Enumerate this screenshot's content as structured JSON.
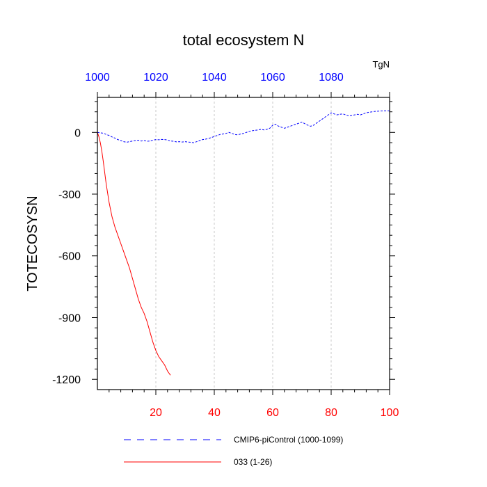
{
  "chart_data": {
    "type": "line",
    "title": "total ecosystem N",
    "ylabel": "TOTECOSYSN",
    "units": "TgN",
    "xlim": [
      0,
      100
    ],
    "ylim": [
      -1250,
      170
    ],
    "bottom_axis": {
      "color": "#ff0000",
      "ticks": [
        20,
        40,
        60,
        80,
        100
      ],
      "tick_labels": [
        "20",
        "40",
        "60",
        "80",
        "100"
      ]
    },
    "top_axis": {
      "color": "#0000ff",
      "offset": 1000,
      "ticks": [
        0,
        20,
        40,
        60,
        80
      ],
      "tick_labels": [
        "1000",
        "1020",
        "1040",
        "1060",
        "1080"
      ]
    },
    "y_ticks": [
      0,
      -300,
      -600,
      -900,
      -1200
    ],
    "y_tick_labels": [
      "0",
      "-300",
      "-600",
      "-900",
      "-1200"
    ],
    "vertical_grid": [
      20,
      40,
      60,
      80
    ],
    "series": [
      {
        "name": "CMIP6-piControl (1000-1099)",
        "color": "#0000ff",
        "dash": "dashed",
        "x": [
          0,
          1,
          2,
          3,
          4,
          5,
          6,
          7,
          8,
          9,
          10,
          11,
          12,
          13,
          14,
          15,
          16,
          17,
          18,
          19,
          20,
          21,
          22,
          23,
          24,
          25,
          26,
          27,
          28,
          29,
          30,
          31,
          32,
          33,
          34,
          35,
          36,
          37,
          38,
          39,
          40,
          41,
          42,
          43,
          44,
          45,
          46,
          47,
          48,
          49,
          50,
          51,
          52,
          53,
          54,
          55,
          56,
          57,
          58,
          59,
          60,
          61,
          62,
          63,
          64,
          65,
          66,
          67,
          68,
          69,
          70,
          71,
          72,
          73,
          74,
          75,
          76,
          77,
          78,
          79,
          80,
          81,
          82,
          83,
          84,
          85,
          86,
          87,
          88,
          89,
          90,
          91,
          92,
          93,
          94,
          95,
          96,
          97,
          98,
          99,
          100
        ],
        "y": [
          0,
          -2,
          -4,
          -10,
          -15,
          -22,
          -28,
          -35,
          -40,
          -45,
          -48,
          -45,
          -42,
          -40,
          -38,
          -42,
          -40,
          -43,
          -42,
          -38,
          -35,
          -36,
          -34,
          -35,
          -37,
          -42,
          -43,
          -46,
          -45,
          -47,
          -45,
          -47,
          -48,
          -50,
          -45,
          -40,
          -35,
          -33,
          -30,
          -25,
          -20,
          -15,
          -10,
          -8,
          -5,
          0,
          -5,
          -10,
          -12,
          -8,
          -5,
          0,
          5,
          8,
          10,
          12,
          15,
          12,
          15,
          20,
          35,
          40,
          30,
          25,
          20,
          25,
          30,
          35,
          40,
          45,
          50,
          42,
          35,
          30,
          35,
          45,
          55,
          65,
          75,
          85,
          95,
          90,
          85,
          88,
          90,
          85,
          80,
          82,
          85,
          88,
          85,
          90,
          95,
          98,
          100,
          102,
          103,
          104,
          105,
          105,
          105
        ]
      },
      {
        "name": "033 (1-26)",
        "color": "#ff0000",
        "dash": "solid",
        "x": [
          0,
          0.5,
          1,
          1.5,
          2,
          3,
          4,
          5,
          6,
          7,
          8,
          9,
          10,
          11,
          12,
          13,
          14,
          15,
          16,
          17,
          18,
          19,
          20,
          21,
          22,
          23,
          24,
          25
        ],
        "y": [
          0,
          -20,
          -50,
          -90,
          -140,
          -250,
          -340,
          -410,
          -460,
          -500,
          -540,
          -580,
          -620,
          -660,
          -710,
          -760,
          -810,
          -850,
          -880,
          -920,
          -970,
          -1020,
          -1060,
          -1090,
          -1110,
          -1130,
          -1160,
          -1180
        ]
      }
    ],
    "legend": {
      "placement": "bottom",
      "entries": [
        "CMIP6-piControl (1000-1099)",
        "033 (1-26)"
      ]
    }
  }
}
